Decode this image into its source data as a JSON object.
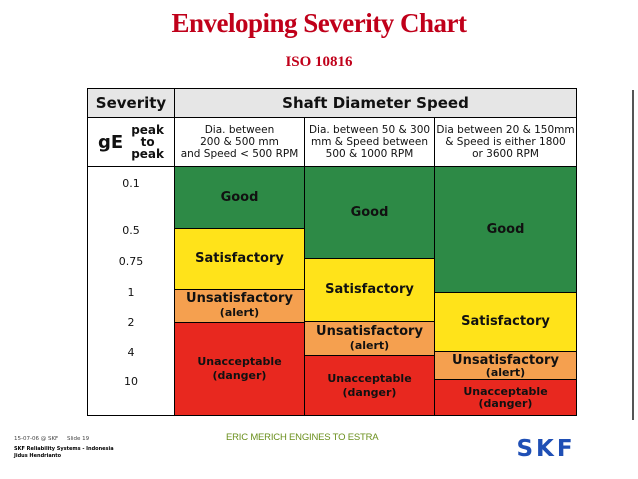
{
  "page": {
    "title": "Enveloping Severity Chart",
    "subtitle": "ISO 10816",
    "footer_date": "15-07-06 @ SKF",
    "footer_slide": "Slide 19",
    "footer_company": "SKF Reliability Systems - Indonesia",
    "footer_author": "Jidus Hendrianto",
    "footer_center": "ERIC MERICH ENGINES TO ESTRA",
    "logo_text": "SKF"
  },
  "colors": {
    "good": "#2d8a46",
    "satisfactory": "#ffe31a",
    "unsatisfactory": "#f5a04f",
    "unacceptable": "#e8281f",
    "title": "#c0001a"
  },
  "chart_data": {
    "type": "table",
    "headers": {
      "severity": "Severity",
      "shaft_speed": "Shaft Diameter Speed",
      "ge": "gE",
      "peak_to_peak": [
        "peak",
        "to",
        "peak"
      ]
    },
    "levels": [
      "0.1",
      "0.5",
      "0.75",
      "1",
      "2",
      "4",
      "10"
    ],
    "columns": [
      {
        "header": [
          "Dia. between",
          "200 & 500 mm",
          "and Speed < 500 RPM"
        ],
        "zones": [
          {
            "type": "good",
            "label": "Good",
            "sub": ""
          },
          {
            "type": "satisfactory",
            "label": "Satisfactory",
            "sub": ""
          },
          {
            "type": "unsatisfactory",
            "label": "Unsatisfactory",
            "sub": "(alert)"
          },
          {
            "type": "unacceptable",
            "label": "Unacceptable",
            "sub": "(danger)"
          }
        ]
      },
      {
        "header": [
          "Dia. between 50 & 300",
          "mm & Speed between",
          "500 & 1000 RPM"
        ],
        "zones": [
          {
            "type": "good",
            "label": "Good",
            "sub": ""
          },
          {
            "type": "satisfactory",
            "label": "Satisfactory",
            "sub": ""
          },
          {
            "type": "unsatisfactory",
            "label": "Unsatisfactory",
            "sub": "(alert)"
          },
          {
            "type": "unacceptable",
            "label": "Unacceptable",
            "sub": "(danger)"
          }
        ]
      },
      {
        "header": [
          "Dia between 20 & 150mm",
          "& Speed is either 1800",
          "or 3600 RPM"
        ],
        "zones": [
          {
            "type": "good",
            "label": "Good",
            "sub": ""
          },
          {
            "type": "satisfactory",
            "label": "Satisfactory",
            "sub": ""
          },
          {
            "type": "unsatisfactory",
            "label": "Unsatisfactory",
            "sub": "(alert)"
          },
          {
            "type": "unacceptable",
            "label": "Unacceptable",
            "sub": "(danger)"
          }
        ]
      }
    ]
  }
}
